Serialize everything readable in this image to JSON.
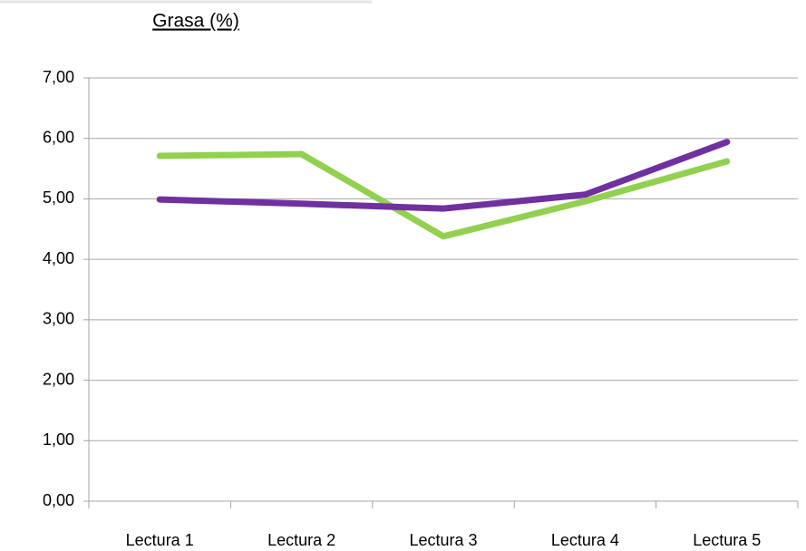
{
  "chart_data": {
    "type": "line",
    "title": "Grasa (%)",
    "categories": [
      "Lectura 1",
      "Lectura 2",
      "Lectura 3",
      "Lectura 4",
      "Lectura 5"
    ],
    "series": [
      {
        "color": "#92d050",
        "values": [
          5.71,
          5.74,
          4.38,
          4.96,
          5.62
        ]
      },
      {
        "color": "#7030a0",
        "values": [
          4.99,
          4.92,
          4.84,
          5.07,
          5.94
        ]
      }
    ],
    "ylim": [
      0,
      7
    ],
    "yticks": [
      {
        "value": 0,
        "label": "0,00"
      },
      {
        "value": 1,
        "label": "1,00"
      },
      {
        "value": 2,
        "label": "2,00"
      },
      {
        "value": 3,
        "label": "3,00"
      },
      {
        "value": 4,
        "label": "4,00"
      },
      {
        "value": 5,
        "label": "5,00"
      },
      {
        "value": 6,
        "label": "6,00"
      },
      {
        "value": 7,
        "label": "7,00"
      }
    ],
    "grid": true
  }
}
